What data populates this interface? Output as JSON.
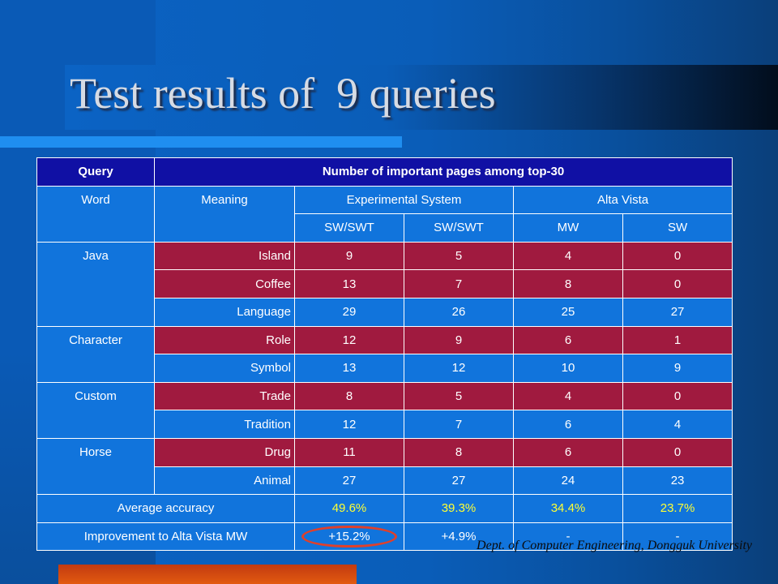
{
  "slide": {
    "title": "Test results of  9 queries",
    "credit": "Dept. of Computer Engineering, Dongguk University"
  },
  "table": {
    "header": {
      "query": "Query",
      "important": "Number of important pages among top-30"
    },
    "subheader": {
      "word": "Word",
      "meaning": "Meaning",
      "experimental": "Experimental System",
      "altavista": "Alta Vista",
      "swswt1": "SW/SWT",
      "swswt2": "SW/SWT",
      "mw": "MW",
      "sw": "SW"
    },
    "rows": [
      {
        "word": "Java",
        "meaning": "Island",
        "c1": "9",
        "c2": "5",
        "c3": "4",
        "c4": "0"
      },
      {
        "word": "",
        "meaning": "Coffee",
        "c1": "13",
        "c2": "7",
        "c3": "8",
        "c4": "0"
      },
      {
        "word": "",
        "meaning": "Language",
        "c1": "29",
        "c2": "26",
        "c3": "25",
        "c4": "27"
      },
      {
        "word": "Character",
        "meaning": "Role",
        "c1": "12",
        "c2": "9",
        "c3": "6",
        "c4": "1"
      },
      {
        "word": "",
        "meaning": "Symbol",
        "c1": "13",
        "c2": "12",
        "c3": "10",
        "c4": "9"
      },
      {
        "word": "Custom",
        "meaning": "Trade",
        "c1": "8",
        "c2": "5",
        "c3": "4",
        "c4": "0"
      },
      {
        "word": "",
        "meaning": "Tradition",
        "c1": "12",
        "c2": "7",
        "c3": "6",
        "c4": "4"
      },
      {
        "word": "Horse",
        "meaning": "Drug",
        "c1": "11",
        "c2": "8",
        "c3": "6",
        "c4": "0"
      },
      {
        "word": "",
        "meaning": "Animal",
        "c1": "27",
        "c2": "27",
        "c3": "24",
        "c4": "23"
      }
    ],
    "average": {
      "label": "Average accuracy",
      "c1": "49.6%",
      "c2": "39.3%",
      "c3": "34.4%",
      "c4": "23.7%"
    },
    "improvement": {
      "label": "Improvement to  Alta Vista MW",
      "c1": "+15.2%",
      "c2": "+4.9%",
      "c3": "-",
      "c4": "-"
    }
  },
  "colors": {
    "header_bg": "#1010a4",
    "cell_bg": "#1174dc",
    "highlight_row_bg": "#a01a3f",
    "percent_text": "#ffff33",
    "circle": "#e0402a",
    "bottom_bar": "#d94a10"
  }
}
